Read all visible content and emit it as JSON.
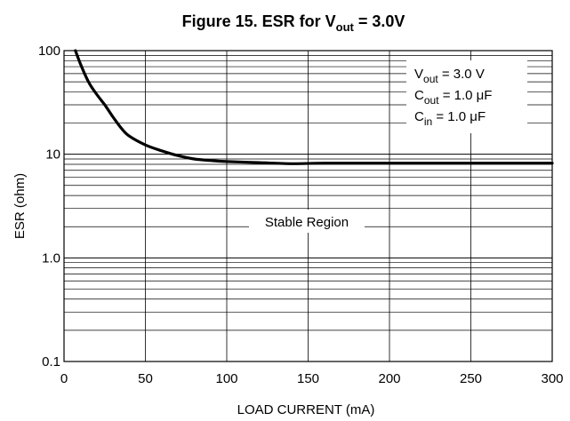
{
  "chart_data": {
    "type": "line",
    "title": {
      "prefix": "Figure 15. ESR for V",
      "sub": "out",
      "suffix": " = 3.0V"
    },
    "xlabel": "LOAD CURRENT (mA)",
    "ylabel": "ESR (ohm)",
    "xlim": [
      0,
      300
    ],
    "ylim": [
      0.1,
      100
    ],
    "yscale": "log",
    "x_ticks": [
      0,
      50,
      100,
      150,
      200,
      250,
      300
    ],
    "x_tick_labels": [
      "0",
      "50",
      "100",
      "150",
      "200",
      "250",
      "300"
    ],
    "y_ticks": [
      0.1,
      1,
      10,
      100
    ],
    "y_tick_labels": [
      "0.1",
      "1.0",
      "10",
      "100"
    ],
    "grid": true,
    "series": [
      {
        "x": [
          7,
          10,
          15,
          20,
          25,
          30,
          35,
          40,
          50,
          60,
          70,
          80,
          90,
          100,
          120,
          140,
          160,
          200,
          250,
          300
        ],
        "y": [
          100,
          75,
          50,
          38,
          30,
          23,
          18,
          15,
          12.3,
          10.8,
          9.7,
          9.0,
          8.7,
          8.5,
          8.3,
          8.1,
          8.2,
          8.2,
          8.2,
          8.2
        ]
      }
    ],
    "annotations": {
      "conditions": [
        {
          "main": "V",
          "sub": "out",
          "rest": " = 3.0 V"
        },
        {
          "main": "C",
          "sub": "out",
          "rest": " = 1.0 μF"
        },
        {
          "main": "C",
          "sub": "in",
          "rest": " = 1.0 μF"
        }
      ],
      "region_label": "Stable Region"
    }
  }
}
